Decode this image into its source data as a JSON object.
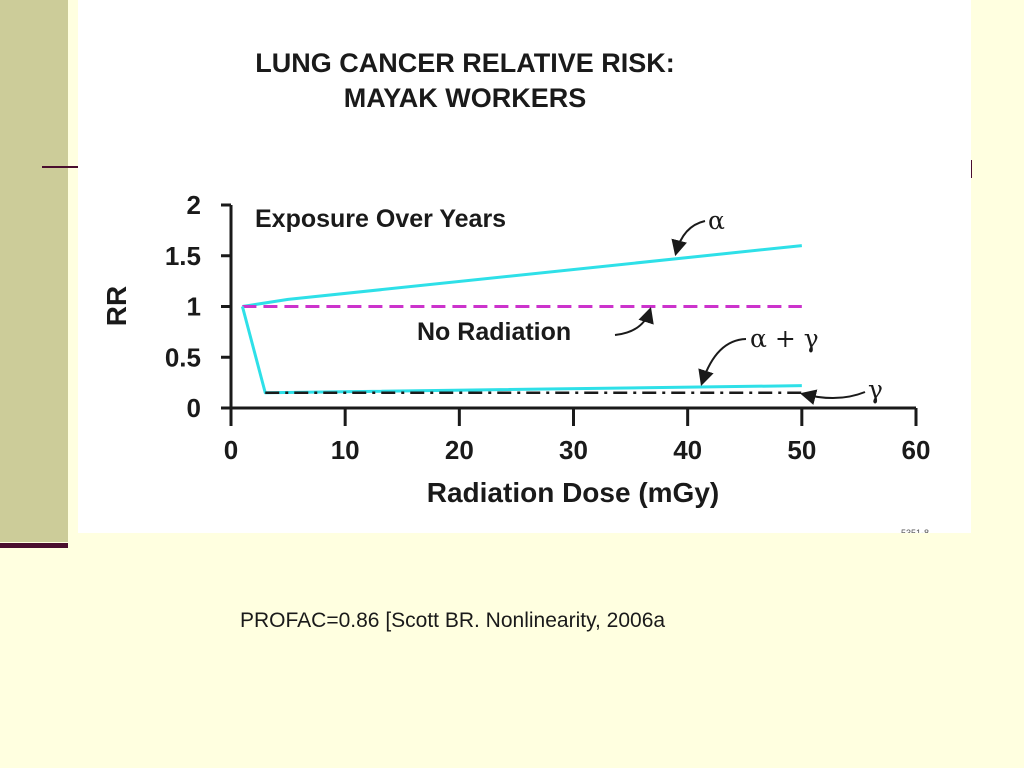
{
  "chart_data": {
    "type": "line",
    "title_lines": [
      "LUNG CANCER RELATIVE RISK:",
      "MAYAK WORKERS"
    ],
    "xlabel": "Radiation Dose (mGy)",
    "ylabel": "RR",
    "xlim": [
      0,
      60
    ],
    "ylim": [
      0,
      2
    ],
    "x_ticks": [
      0,
      10,
      20,
      30,
      40,
      50,
      60
    ],
    "y_ticks": [
      0,
      0.5,
      1,
      1.5,
      2
    ],
    "x_tick_labels": [
      "0",
      "10",
      "20",
      "30",
      "40",
      "50",
      "60"
    ],
    "y_tick_labels": [
      "0",
      "0.5",
      "1",
      "1.5",
      "2"
    ],
    "grid": false,
    "legend": "none",
    "inset_text": "Exposure Over Years",
    "series": [
      {
        "label": "α",
        "color": "#2EE0E8",
        "style": "solid",
        "x": [
          1,
          5,
          50
        ],
        "y": [
          1.0,
          1.07,
          1.6
        ]
      },
      {
        "label": "No Radiation",
        "color": "#CC33CC",
        "style": "dashed",
        "x": [
          1,
          50
        ],
        "y": [
          1.0,
          1.0
        ]
      },
      {
        "label": "α + γ",
        "color": "#2EE0E8",
        "style": "solid",
        "x": [
          1,
          3,
          50
        ],
        "y": [
          1.0,
          0.15,
          0.22
        ]
      },
      {
        "label": "γ",
        "color": "#1A1A1A",
        "style": "dashdot",
        "x": [
          3,
          50
        ],
        "y": [
          0.15,
          0.15
        ]
      }
    ],
    "figure_code": "5351-8"
  },
  "caption": "PROFAC=0.86 [Scott BR. Nonlinearity, 2006a"
}
